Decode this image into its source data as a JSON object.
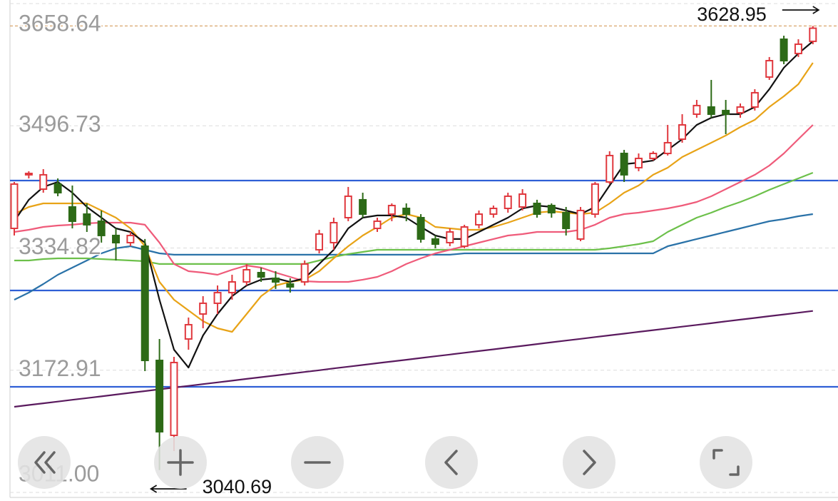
{
  "chart_data": {
    "type": "candlestick",
    "ylim": [
      3011,
      3658.64
    ],
    "yticks": [
      {
        "value": 3011,
        "label": "3011.00"
      },
      3172.91,
      3334.82,
      3496.73,
      3658.64
    ],
    "grid": true,
    "up_color": "#e0383e",
    "down_color": "#2d6a17",
    "open": [
      3360.8,
      3431.8,
      3412.8,
      3419.5,
      3389.2,
      3379.7,
      3370.3,
      3351.4,
      3341.9,
      3337.2,
      3185.9,
      3086.6,
      3214.3,
      3247.4,
      3261.6,
      3275.7,
      3289.9,
      3302.2,
      3294.7,
      3287.1,
      3289.9,
      3332.5,
      3341.9,
      3375.0,
      3398.7,
      3360.8,
      3379.7,
      3387.3,
      3375.0,
      3346.7,
      3341.9,
      3337.2,
      3365.6,
      3379.7,
      3387.3,
      3389.2,
      3393.9,
      3391.1,
      3381.6,
      3346.7,
      3379.7,
      3422.3,
      3460.1,
      3441.2,
      3453.5,
      3460.1,
      3479.0,
      3512.1,
      3521.6,
      3516.9,
      3514.0,
      3521.6,
      3561.3,
      3611.4,
      3592.5,
      3608.6
    ],
    "high": [
      3422.3,
      3436.5,
      3439.3,
      3427.0,
      3417.6,
      3393.9,
      3384.5,
      3360.8,
      3356.1,
      3346.7,
      3214.3,
      3190.6,
      3242.7,
      3271.0,
      3285.2,
      3299.4,
      3313.6,
      3308.8,
      3304.1,
      3294.7,
      3318.3,
      3358.9,
      3375.0,
      3415.7,
      3408.1,
      3375.0,
      3393.9,
      3393.9,
      3379.7,
      3351.4,
      3360.8,
      3365.6,
      3384.5,
      3391.1,
      3408.1,
      3412.8,
      3398.7,
      3393.9,
      3389.2,
      3389.2,
      3422.3,
      3463.0,
      3464.8,
      3460.1,
      3463.0,
      3497.9,
      3512.1,
      3531.0,
      3557.5,
      3531.0,
      3526.3,
      3545.2,
      3587.8,
      3616.1,
      3611.4,
      3628.95
    ],
    "low": [
      3351.4,
      3427.0,
      3408.1,
      3403.4,
      3360.8,
      3356.1,
      3341.9,
      3318.3,
      3337.2,
      3171.7,
      3040.69,
      3065.8,
      3200.1,
      3228.5,
      3247.4,
      3266.3,
      3285.2,
      3289.9,
      3280.5,
      3275.7,
      3285.2,
      3327.7,
      3332.5,
      3370.3,
      3375.0,
      3356.1,
      3370.3,
      3370.3,
      3341.9,
      3334.4,
      3337.2,
      3334.4,
      3360.8,
      3375.0,
      3381.6,
      3384.5,
      3375.0,
      3375.0,
      3351.4,
      3343.8,
      3375.0,
      3419.5,
      3422.3,
      3436.5,
      3450.7,
      3457.3,
      3474.3,
      3507.4,
      3507.4,
      3485.6,
      3507.4,
      3516.9,
      3557.5,
      3578.3,
      3587.8,
      3604.8
    ],
    "close": [
      3419.5,
      3433.6,
      3431.8,
      3408.1,
      3370.3,
      3365.6,
      3351.4,
      3341.9,
      3351.4,
      3185.9,
      3091.4,
      3183.1,
      3233.2,
      3261.6,
      3275.7,
      3289.9,
      3306.0,
      3296.5,
      3289.9,
      3283.3,
      3313.6,
      3353.3,
      3368.4,
      3403.4,
      3379.7,
      3370.3,
      3391.1,
      3379.7,
      3346.7,
      3340.0,
      3356.1,
      3362.7,
      3379.7,
      3387.3,
      3403.4,
      3406.2,
      3379.7,
      3381.6,
      3360.8,
      3384.5,
      3419.5,
      3457.3,
      3431.8,
      3453.5,
      3460.1,
      3474.3,
      3497.9,
      3523.5,
      3512.1,
      3512.1,
      3521.6,
      3540.5,
      3583.0,
      3583.0,
      3604.8,
      3626.0
    ],
    "lines": [
      {
        "color": "#5a1a5e",
        "values": [
          3124.5,
          3126.8,
          3129.1,
          3131.4,
          3133.7,
          3136.0,
          3138.3,
          3140.6,
          3143.0,
          3145.3,
          3147.6,
          3149.9,
          3152.2,
          3154.5,
          3156.8,
          3159.1,
          3161.4,
          3163.7,
          3166.0,
          3168.3,
          3170.6,
          3172.9,
          3175.3,
          3177.6,
          3179.9,
          3182.2,
          3184.5,
          3186.8,
          3189.1,
          3191.4,
          3193.7,
          3196.0,
          3198.3,
          3200.6,
          3202.9,
          3205.2,
          3207.6,
          3209.9,
          3212.2,
          3214.5,
          3216.8,
          3219.1,
          3221.4,
          3223.7,
          3226.0,
          3228.3,
          3230.6,
          3232.9,
          3235.2,
          3237.6,
          3239.9,
          3242.2,
          3244.5,
          3246.8,
          3249.1,
          3251.4
        ]
      },
      {
        "color": "#2a72a8",
        "values": [
          3266.3,
          3275.7,
          3287.1,
          3299.4,
          3308.8,
          3318.3,
          3327.7,
          3334.4,
          3337.2,
          3332.5,
          3327.7,
          3325.9,
          3325.9,
          3325.9,
          3325.9,
          3325.9,
          3325.9,
          3325.9,
          3325.9,
          3325.9,
          3325.9,
          3325.9,
          3325.9,
          3325.9,
          3325.9,
          3325.9,
          3325.9,
          3325.9,
          3325.9,
          3325.9,
          3325.9,
          3327.7,
          3327.7,
          3327.7,
          3327.7,
          3327.7,
          3327.7,
          3327.7,
          3327.7,
          3327.7,
          3327.7,
          3327.7,
          3327.7,
          3327.7,
          3327.7,
          3337.2,
          3341.9,
          3346.7,
          3351.4,
          3356.1,
          3360.8,
          3365.6,
          3370.3,
          3373.1,
          3376.9,
          3379.7
        ]
      },
      {
        "color": "#6cc04a",
        "values": [
          3318.3,
          3318.3,
          3320.2,
          3321.1,
          3321.1,
          3321.1,
          3320.2,
          3319.2,
          3318.3,
          3317.3,
          3313.6,
          3313.6,
          3313.6,
          3313.6,
          3313.6,
          3313.6,
          3313.6,
          3313.6,
          3313.6,
          3313.6,
          3313.6,
          3318.3,
          3323.0,
          3326.8,
          3329.6,
          3332.5,
          3332.5,
          3332.5,
          3332.5,
          3332.5,
          3332.5,
          3332.5,
          3332.5,
          3332.5,
          3332.5,
          3332.5,
          3332.5,
          3332.5,
          3332.5,
          3332.5,
          3332.5,
          3334.4,
          3337.2,
          3340.0,
          3343.8,
          3356.1,
          3365.6,
          3375.0,
          3381.6,
          3389.2,
          3395.8,
          3403.4,
          3411.9,
          3419.5,
          3427.0,
          3434.6
        ]
      },
      {
        "color": "#ef5b7a",
        "values": [
          3356.1,
          3358.9,
          3362.7,
          3364.6,
          3365.6,
          3367.5,
          3368.4,
          3368.4,
          3368.4,
          3365.6,
          3341.9,
          3313.6,
          3304.1,
          3302.2,
          3299.4,
          3306.0,
          3311.7,
          3308.8,
          3302.2,
          3296.5,
          3290.9,
          3289.9,
          3289.9,
          3289.9,
          3292.8,
          3296.5,
          3304.1,
          3313.6,
          3321.1,
          3327.7,
          3332.5,
          3337.2,
          3341.9,
          3346.7,
          3351.4,
          3353.3,
          3356.1,
          3356.1,
          3356.1,
          3358.9,
          3365.6,
          3375.0,
          3379.7,
          3381.6,
          3384.5,
          3387.3,
          3391.1,
          3395.8,
          3403.4,
          3412.8,
          3422.3,
          3431.8,
          3444.0,
          3460.1,
          3479.0,
          3497.9
        ]
      },
      {
        "color": "#e8a317",
        "values": [
          3379.7,
          3389.2,
          3393.9,
          3393.9,
          3393.9,
          3393.9,
          3384.5,
          3375.0,
          3360.8,
          3337.2,
          3289.9,
          3266.3,
          3252.1,
          3237.9,
          3228.5,
          3223.7,
          3247.4,
          3271.0,
          3285.2,
          3289.9,
          3292.8,
          3304.1,
          3321.1,
          3337.2,
          3351.4,
          3362.7,
          3375.0,
          3379.7,
          3375.0,
          3362.7,
          3360.8,
          3358.9,
          3358.9,
          3362.7,
          3368.4,
          3375.0,
          3381.6,
          3383.5,
          3381.6,
          3379.7,
          3381.6,
          3393.9,
          3408.1,
          3417.6,
          3431.8,
          3441.2,
          3455.4,
          3464.8,
          3474.3,
          3483.8,
          3495.1,
          3504.6,
          3521.6,
          3535.8,
          3551.8,
          3580.2
        ]
      },
      {
        "color": "#111111",
        "values": [
          3370.3,
          3398.7,
          3415.7,
          3422.3,
          3408.1,
          3389.2,
          3375.0,
          3360.8,
          3356.1,
          3341.9,
          3266.3,
          3200.1,
          3176.5,
          3219.0,
          3247.4,
          3271.0,
          3285.2,
          3292.8,
          3294.7,
          3289.9,
          3294.7,
          3313.6,
          3332.5,
          3360.8,
          3375.0,
          3377.9,
          3377.9,
          3375.0,
          3362.7,
          3351.4,
          3346.7,
          3346.7,
          3356.1,
          3365.6,
          3375.0,
          3387.3,
          3391.1,
          3389.2,
          3384.5,
          3379.7,
          3389.2,
          3417.6,
          3445.9,
          3447.8,
          3450.7,
          3464.8,
          3479.0,
          3497.9,
          3507.4,
          3512.1,
          3512.1,
          3521.6,
          3545.2,
          3573.6,
          3592.5,
          3608.6
        ]
      }
    ],
    "levels": [
      3424.2,
      3278.6,
      3150.9
    ],
    "level_color": "#2f5fd6",
    "price_line": 3628.95,
    "price_line_color": "#d9a66b",
    "high_label": 3628.95,
    "low_label": 3040.69
  }
}
